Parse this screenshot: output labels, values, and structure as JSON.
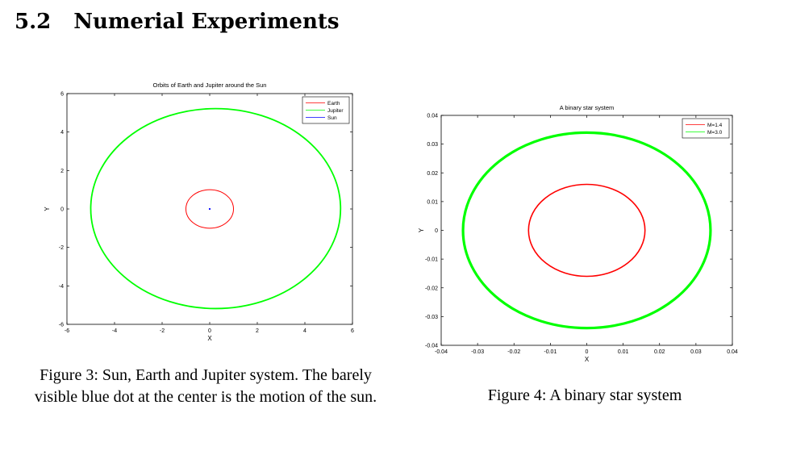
{
  "section": {
    "number": "5.2",
    "title": "Numerial Experiments"
  },
  "figures": [
    {
      "caption": "Figure 3: Sun, Earth and Jupiter system. The barely visible blue dot at the center is the motion of the sun."
    },
    {
      "caption": "Figure 4: A binary star system"
    }
  ],
  "chart_data": [
    {
      "type": "line",
      "title": "Orbits of Earth and Jupiter around the Sun",
      "xlabel": "X",
      "ylabel": "Y",
      "xlim": [
        -6,
        6
      ],
      "ylim": [
        -6,
        6
      ],
      "xticks": [
        -6,
        -4,
        -2,
        0,
        2,
        4,
        6
      ],
      "yticks": [
        -6,
        -4,
        -2,
        0,
        2,
        4,
        6
      ],
      "grid": false,
      "legend_position": "top-right",
      "series": [
        {
          "name": "Earth",
          "color": "#ff0000",
          "shape": "ellipse",
          "center": [
            0,
            0
          ],
          "radius_x": 1.0,
          "radius_y": 1.0
        },
        {
          "name": "Jupiter",
          "color": "#00ff00",
          "shape": "ellipse",
          "center": [
            0.25,
            0.02
          ],
          "radius_x": 5.25,
          "radius_y": 5.2
        },
        {
          "name": "Sun",
          "color": "#0000ff",
          "shape": "ellipse",
          "center": [
            0,
            0
          ],
          "radius_x": 0.02,
          "radius_y": 0.02
        }
      ]
    },
    {
      "type": "line",
      "title": "A binary star system",
      "xlabel": "X",
      "ylabel": "Y",
      "xlim": [
        -0.04,
        0.04
      ],
      "ylim": [
        -0.04,
        0.04
      ],
      "xticks": [
        "-0.04",
        "-0.03",
        "-0.02",
        "-0.01",
        "0",
        "0.01",
        "0.02",
        "0.03",
        "0.04"
      ],
      "yticks": [
        "-0.04",
        "-0.03",
        "-0.02",
        "-0.01",
        "0",
        "0.01",
        "0.02",
        "0.03",
        "0.04"
      ],
      "grid": false,
      "legend_position": "top-right",
      "series": [
        {
          "name": "M=1.4",
          "color": "#ff0000",
          "shape": "ellipse",
          "center": [
            0,
            0
          ],
          "radius_x": 0.016,
          "radius_y": 0.016
        },
        {
          "name": "M=3.0",
          "color": "#00ff00",
          "shape": "ellipse",
          "center": [
            0,
            0
          ],
          "radius_x": 0.034,
          "radius_y": 0.034
        }
      ]
    }
  ]
}
